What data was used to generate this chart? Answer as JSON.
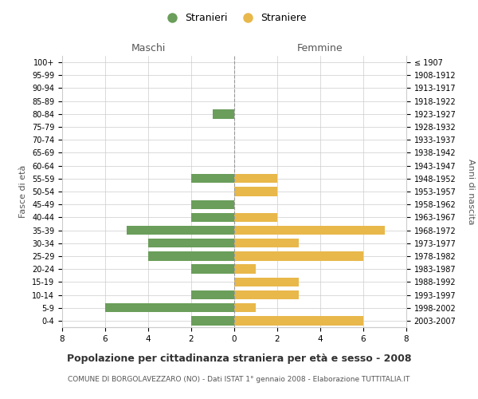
{
  "age_groups": [
    "0-4",
    "5-9",
    "10-14",
    "15-19",
    "20-24",
    "25-29",
    "30-34",
    "35-39",
    "40-44",
    "45-49",
    "50-54",
    "55-59",
    "60-64",
    "65-69",
    "70-74",
    "75-79",
    "80-84",
    "85-89",
    "90-94",
    "95-99",
    "100+"
  ],
  "birth_years": [
    "2003-2007",
    "1998-2002",
    "1993-1997",
    "1988-1992",
    "1983-1987",
    "1978-1982",
    "1973-1977",
    "1968-1972",
    "1963-1967",
    "1958-1962",
    "1953-1957",
    "1948-1952",
    "1943-1947",
    "1938-1942",
    "1933-1937",
    "1928-1932",
    "1923-1927",
    "1918-1922",
    "1913-1917",
    "1908-1912",
    "≤ 1907"
  ],
  "males": [
    2,
    6,
    2,
    0,
    2,
    4,
    4,
    5,
    2,
    2,
    0,
    2,
    0,
    0,
    0,
    0,
    1,
    0,
    0,
    0,
    0
  ],
  "females": [
    6,
    1,
    3,
    3,
    1,
    6,
    3,
    7,
    2,
    0,
    2,
    2,
    0,
    0,
    0,
    0,
    0,
    0,
    0,
    0,
    0
  ],
  "male_color": "#6a9e5a",
  "female_color": "#e8b84b",
  "xlim": 8,
  "title": "Popolazione per cittadinanza straniera per età e sesso - 2008",
  "subtitle": "COMUNE DI BORGOLAVEZZARO (NO) - Dati ISTAT 1° gennaio 2008 - Elaborazione TUTTITALIA.IT",
  "ylabel_left": "Fasce di età",
  "ylabel_right": "Anni di nascita",
  "legend_male": "Stranieri",
  "legend_female": "Straniere",
  "maschi_label": "Maschi",
  "femmine_label": "Femmine",
  "background_color": "#ffffff",
  "grid_color": "#cccccc"
}
